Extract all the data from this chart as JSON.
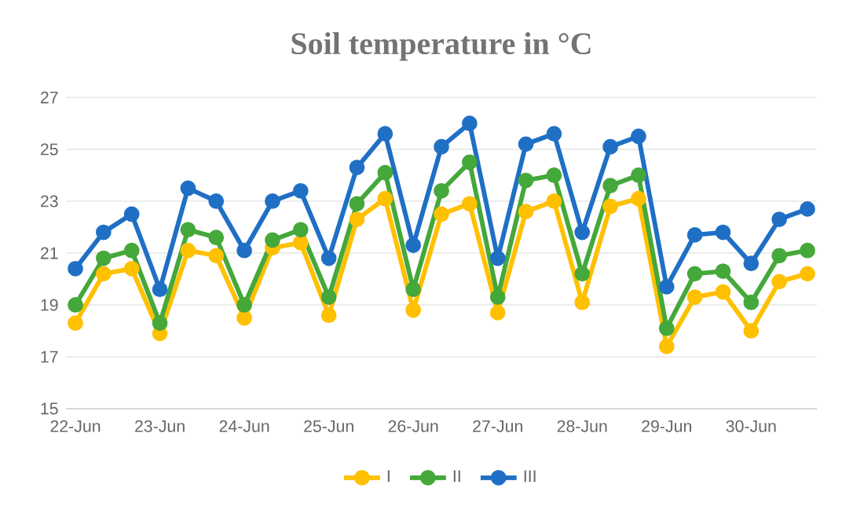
{
  "chart_data": {
    "type": "line",
    "title": "Soil temperature in °C",
    "categories": [
      "22-Jun",
      null,
      null,
      "23-Jun",
      null,
      null,
      "24-Jun",
      null,
      null,
      "25-Jun",
      null,
      null,
      "26-Jun",
      null,
      null,
      "27-Jun",
      null,
      null,
      "28-Jun",
      null,
      null,
      "29-Jun",
      null,
      null,
      "30-Jun",
      null,
      null
    ],
    "series": [
      {
        "name": "I",
        "color": "#ffc000",
        "values": [
          18.3,
          20.2,
          20.4,
          17.9,
          21.1,
          20.9,
          18.5,
          21.2,
          21.4,
          18.6,
          22.3,
          23.1,
          18.8,
          22.5,
          22.9,
          18.7,
          22.6,
          23.0,
          19.1,
          22.8,
          23.1,
          17.4,
          19.3,
          19.5,
          18.0,
          19.9,
          20.2
        ]
      },
      {
        "name": "II",
        "color": "#44a83a",
        "values": [
          19.0,
          20.8,
          21.1,
          18.3,
          21.9,
          21.6,
          19.0,
          21.5,
          21.9,
          19.3,
          22.9,
          24.1,
          19.6,
          23.4,
          24.5,
          19.3,
          23.8,
          24.0,
          20.2,
          23.6,
          24.0,
          18.1,
          20.2,
          20.3,
          19.1,
          20.9,
          21.1
        ]
      },
      {
        "name": "III",
        "color": "#1f6fc5",
        "values": [
          20.4,
          21.8,
          22.5,
          19.6,
          23.5,
          23.0,
          21.1,
          23.0,
          23.4,
          20.8,
          24.3,
          25.6,
          21.3,
          25.1,
          26.0,
          20.8,
          25.2,
          25.6,
          21.8,
          25.1,
          25.5,
          19.7,
          21.7,
          21.8,
          20.6,
          22.3,
          22.7
        ]
      }
    ],
    "ylim": [
      15,
      27
    ],
    "yticks": [
      15,
      17,
      19,
      21,
      23,
      25,
      27
    ],
    "grid": "y",
    "legend": "bottom",
    "marker": "circle",
    "line_style": "solid"
  }
}
